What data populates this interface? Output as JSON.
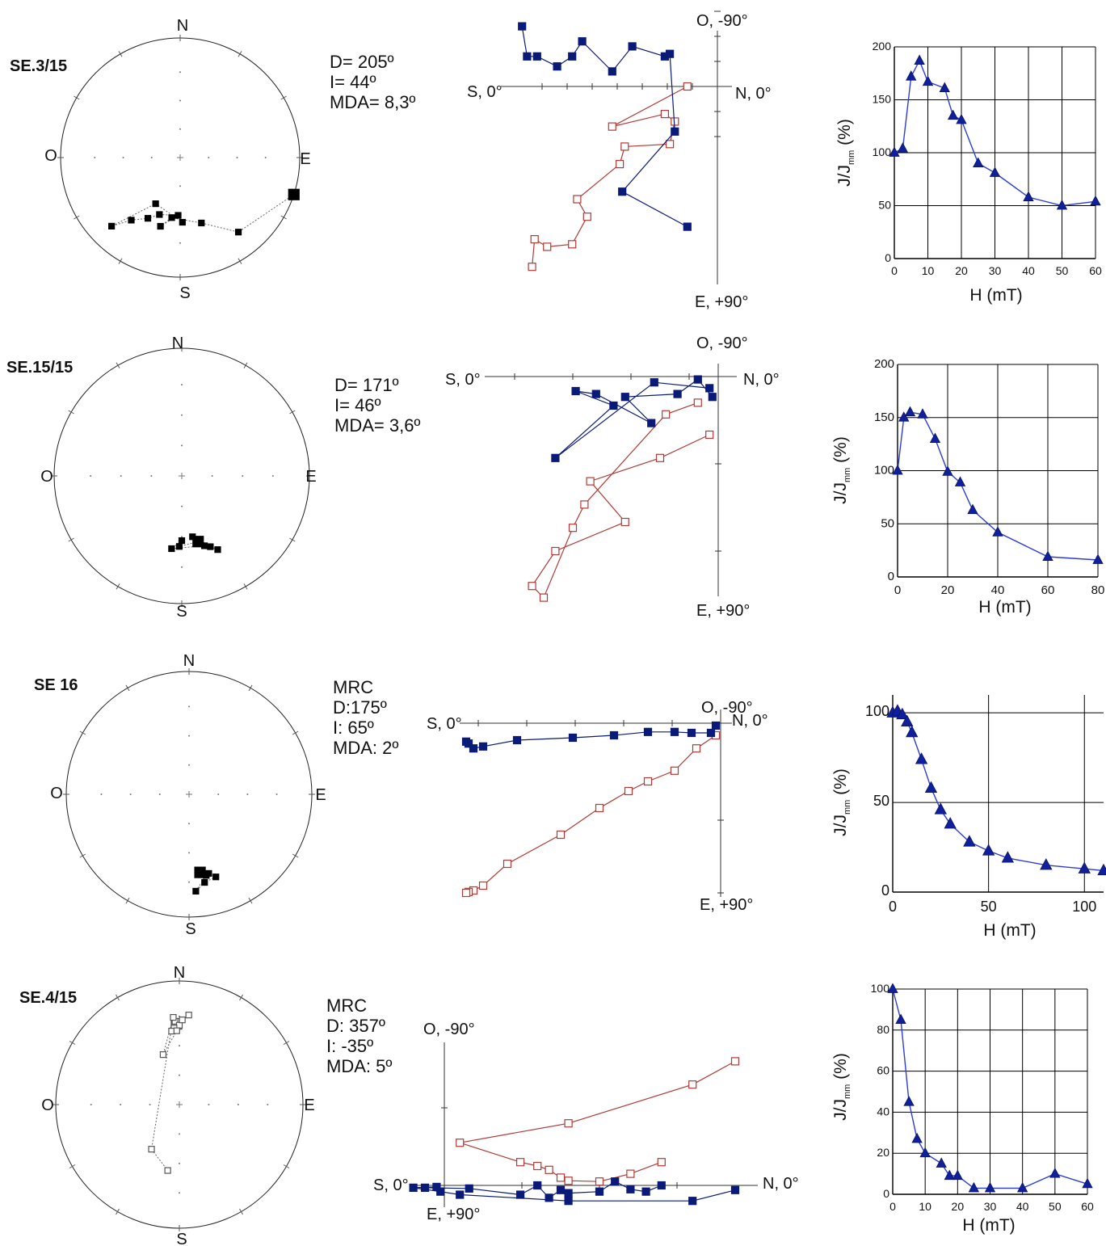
{
  "chart_data": [
    {
      "type": "stereonet",
      "panel": 1,
      "sample": "SE.3/15",
      "compass": {
        "n": "N",
        "s": "S",
        "e": "E",
        "w": "O"
      },
      "stats": [
        "D= 205º",
        "I= 44º",
        "MDA= 8,3º"
      ],
      "points": [
        {
          "dec": 108,
          "inc": 0,
          "big": true
        },
        {
          "dec": 142,
          "inc": 22
        },
        {
          "dec": 162,
          "inc": 42
        },
        {
          "dec": 188,
          "inc": 48
        },
        {
          "dec": 196,
          "inc": 40
        },
        {
          "dec": 182,
          "inc": 50
        },
        {
          "dec": 200,
          "inc": 48
        },
        {
          "dec": 208,
          "inc": 42
        },
        {
          "dec": 218,
          "inc": 34
        },
        {
          "dec": 225,
          "inc": 20
        },
        {
          "dec": 208,
          "inc": 54
        },
        {
          "dec": 178,
          "inc": 45
        }
      ]
    },
    {
      "type": "zijderveld",
      "panel": 1,
      "axes": {
        "top": "O, -90°",
        "bottom": "E, +90°",
        "left": "S, 0°",
        "right": "N, 0°"
      },
      "horizontal": [
        [
          -3.9,
          1.2
        ],
        [
          -3.8,
          0.6
        ],
        [
          -3.6,
          0.6
        ],
        [
          -3.2,
          0.4
        ],
        [
          -2.9,
          0.6
        ],
        [
          -2.7,
          0.9
        ],
        [
          -2.1,
          0.3
        ],
        [
          -1.7,
          0.8
        ],
        [
          -1.05,
          0.6
        ],
        [
          -0.95,
          0.65
        ],
        [
          -0.85,
          -0.9
        ],
        [
          -1.9,
          -2.1
        ],
        [
          -0.6,
          -2.8
        ]
      ],
      "vertical": [
        [
          -0.6,
          0.0
        ],
        [
          -2.1,
          -0.8
        ],
        [
          -1.05,
          -0.55
        ],
        [
          -0.85,
          -0.7
        ],
        [
          -0.95,
          -1.15
        ],
        [
          -1.85,
          -1.2
        ],
        [
          -1.95,
          -1.55
        ],
        [
          -2.8,
          -2.25
        ],
        [
          -2.6,
          -2.6
        ],
        [
          -2.9,
          -3.15
        ],
        [
          -3.4,
          -3.2
        ],
        [
          -3.65,
          -3.05
        ],
        [
          -3.7,
          -3.6
        ]
      ]
    },
    {
      "type": "line",
      "panel": 1,
      "xlabel": "H (mT)",
      "ylabel": "J/J",
      "ylabel_sub": "mm",
      "ylabel_unit": " (%)",
      "xlim": [
        0,
        60
      ],
      "ylim": [
        0,
        200
      ],
      "xticks": [
        0,
        10,
        20,
        30,
        40,
        50,
        60
      ],
      "yticks": [
        0,
        50,
        100,
        150,
        200
      ],
      "grid": true,
      "x": [
        0,
        2.5,
        5,
        7.5,
        10,
        15,
        17.5,
        20,
        25,
        30,
        40,
        50,
        60
      ],
      "y": [
        100,
        104,
        172,
        187,
        167,
        161,
        135,
        131,
        90,
        81,
        58,
        50,
        54
      ]
    },
    {
      "type": "stereonet",
      "panel": 2,
      "sample": "SE.15/15",
      "compass": {
        "n": "N",
        "s": "S",
        "e": "E",
        "w": "O"
      },
      "stats": [
        "D= 171º",
        "I= 46º",
        "MDA= 3,6º"
      ],
      "points": [
        {
          "dec": 166,
          "inc": 46,
          "big": true
        },
        {
          "dec": 182,
          "inc": 44
        },
        {
          "dec": 180,
          "inc": 48
        },
        {
          "dec": 188,
          "inc": 42
        },
        {
          "dec": 162,
          "inc": 42
        },
        {
          "dec": 158,
          "inc": 40
        },
        {
          "dec": 154,
          "inc": 36
        },
        {
          "dec": 170,
          "inc": 50
        }
      ]
    },
    {
      "type": "zijderveld",
      "panel": 2,
      "axes": {
        "top": "O, -90°",
        "bottom": "E, +90°",
        "left": "S, 0°",
        "right": "N, 0°"
      },
      "horizontal": [
        [
          -0.15,
          -0.2
        ],
        [
          -1.1,
          -0.1
        ],
        [
          -2.8,
          -1.4
        ],
        [
          -1.8,
          -0.5
        ],
        [
          -2.45,
          -0.25
        ],
        [
          -2.1,
          -0.3
        ],
        [
          -1.15,
          -0.8
        ],
        [
          -1.6,
          -0.35
        ],
        [
          -0.7,
          -0.3
        ],
        [
          -0.35,
          -0.05
        ],
        [
          -0.1,
          -0.35
        ]
      ],
      "vertical": [
        [
          -0.15,
          -1.0
        ],
        [
          -1.0,
          -1.4
        ],
        [
          -2.2,
          -1.8
        ],
        [
          -1.6,
          -2.5
        ],
        [
          -2.8,
          -3.0
        ],
        [
          -3.2,
          -3.6
        ],
        [
          -3.0,
          -3.8
        ],
        [
          -2.5,
          -2.6
        ],
        [
          -2.3,
          -2.2
        ],
        [
          -0.9,
          -0.65
        ],
        [
          -0.35,
          -0.45
        ]
      ]
    },
    {
      "type": "line",
      "panel": 2,
      "xlabel": "H (mT)",
      "ylabel": "J/J",
      "ylabel_sub": "mm",
      "ylabel_unit": " (%)",
      "xlim": [
        0,
        80
      ],
      "ylim": [
        0,
        200
      ],
      "xticks": [
        0,
        20,
        40,
        60,
        80
      ],
      "yticks": [
        0,
        50,
        100,
        150,
        200
      ],
      "grid": true,
      "x": [
        0,
        2.5,
        5,
        10,
        15,
        20,
        25,
        30,
        40,
        60,
        80
      ],
      "y": [
        100,
        150,
        155,
        153,
        130,
        99,
        89,
        63,
        42,
        19,
        16
      ]
    },
    {
      "type": "stereonet",
      "panel": 3,
      "sample": "SE 16",
      "compass": {
        "n": "N",
        "s": "S",
        "e": "E",
        "w": "O"
      },
      "stats": [
        "MRC",
        "D:175º",
        "I: 65º",
        "MDA: 2º"
      ],
      "points": [
        {
          "dec": 172,
          "inc": 36,
          "big": true
        },
        {
          "dec": 166,
          "inc": 34
        },
        {
          "dec": 162,
          "inc": 30
        },
        {
          "dec": 170,
          "inc": 28
        },
        {
          "dec": 176,
          "inc": 22
        },
        {
          "dec": 168,
          "inc": 33
        }
      ]
    },
    {
      "type": "zijderveld",
      "panel": 3,
      "axes": {
        "top": "O, -90°",
        "bottom": "E, +90°",
        "left": "S, 0°",
        "right": "N, 0°"
      },
      "horizontal": [
        [
          -0.1,
          -0.05
        ],
        [
          -0.2,
          -0.2
        ],
        [
          -0.6,
          -0.2
        ],
        [
          -0.95,
          -0.18
        ],
        [
          -1.5,
          -0.18
        ],
        [
          -2.2,
          -0.25
        ],
        [
          -3.05,
          -0.3
        ],
        [
          -4.2,
          -0.35
        ],
        [
          -4.9,
          -0.48
        ],
        [
          -5.1,
          -0.52
        ],
        [
          -5.2,
          -0.42
        ],
        [
          -5.25,
          -0.38
        ]
      ],
      "vertical": [
        [
          -0.1,
          -0.25
        ],
        [
          -0.5,
          -0.52
        ],
        [
          -0.95,
          -0.98
        ],
        [
          -1.5,
          -1.2
        ],
        [
          -1.9,
          -1.4
        ],
        [
          -2.5,
          -1.75
        ],
        [
          -3.3,
          -2.3
        ],
        [
          -4.4,
          -2.9
        ],
        [
          -4.9,
          -3.35
        ],
        [
          -5.1,
          -3.45
        ],
        [
          -5.2,
          -3.48
        ],
        [
          -5.25,
          -3.5
        ]
      ]
    },
    {
      "type": "line",
      "panel": 3,
      "xlabel": "H (mT)",
      "ylabel": "J/J",
      "ylabel_sub": "mm",
      "ylabel_unit": " (%)",
      "xlim": [
        0,
        110
      ],
      "ylim": [
        0,
        110
      ],
      "xticks": [
        0,
        50,
        100
      ],
      "yticks": [
        0,
        50,
        100
      ],
      "grid": true,
      "x": [
        0,
        2.5,
        5,
        7.5,
        10,
        15,
        20,
        25,
        30,
        40,
        50,
        60,
        80,
        100,
        110
      ],
      "y": [
        100,
        101,
        99,
        95,
        89,
        74,
        58,
        46,
        38,
        28,
        23,
        19,
        15,
        13,
        12
      ]
    },
    {
      "type": "stereonet",
      "panel": 4,
      "sample": "SE.4/15",
      "compass": {
        "n": "N",
        "s": "S",
        "e": "E",
        "w": "O"
      },
      "stats": [
        "MRC",
        "D: 357º",
        "I: -35º",
        "MDA: 5º"
      ],
      "points": [
        {
          "dec": 358,
          "inc": 35,
          "open": true,
          "big": true
        },
        {
          "dec": 357,
          "inc": 33,
          "open": true
        },
        {
          "dec": 0,
          "inc": 36,
          "open": true
        },
        {
          "dec": 6,
          "inc": 28,
          "open": true
        },
        {
          "dec": 356,
          "inc": 38,
          "open": true
        },
        {
          "dec": 2,
          "inc": 32,
          "open": true
        },
        {
          "dec": 354,
          "inc": 40,
          "open": true
        },
        {
          "dec": 358,
          "inc": 40,
          "open": true
        },
        {
          "dec": 342,
          "inc": 55,
          "open": true
        },
        {
          "dec": 356,
          "inc": 30,
          "open": true
        },
        {
          "dec": 212,
          "inc": 55,
          "open": true
        },
        {
          "dec": 190,
          "inc": 45,
          "open": true
        }
      ]
    },
    {
      "type": "zijderveld",
      "panel": 4,
      "axes": {
        "top": "O, -90°",
        "bottom": "E, +90°",
        "left": "S, 0°",
        "right": "N, 0°"
      },
      "horizontal": [
        [
          3.75,
          -0.06
        ],
        [
          3.2,
          -0.2
        ],
        [
          1.6,
          -0.2
        ],
        [
          0.2,
          -0.12
        ],
        [
          -0.05,
          -0.08
        ],
        [
          -0.4,
          -0.03
        ],
        [
          -0.1,
          -0.02
        ],
        [
          -0.25,
          -0.03
        ],
        [
          0.32,
          -0.04
        ],
        [
          0.98,
          -0.12
        ],
        [
          1.2,
          0.0
        ],
        [
          1.35,
          -0.16
        ],
        [
          1.5,
          -0.06
        ],
        [
          1.6,
          -0.1
        ],
        [
          2.0,
          -0.08
        ],
        [
          2.2,
          0.05
        ],
        [
          2.4,
          -0.05
        ],
        [
          2.6,
          -0.08
        ],
        [
          2.8,
          0.0
        ]
      ],
      "vertical": [
        [
          3.75,
          1.6
        ],
        [
          3.2,
          1.3
        ],
        [
          1.6,
          0.8
        ],
        [
          0.2,
          0.55
        ],
        [
          0.98,
          0.3
        ],
        [
          1.2,
          0.25
        ],
        [
          1.35,
          0.2
        ],
        [
          1.5,
          0.1
        ],
        [
          1.6,
          0.06
        ],
        [
          2.0,
          0.05
        ],
        [
          2.4,
          0.15
        ],
        [
          2.8,
          0.3
        ]
      ]
    },
    {
      "type": "line",
      "panel": 4,
      "xlabel": "H (mT)",
      "ylabel": "J/J",
      "ylabel_sub": "mm",
      "ylabel_unit": " (%)",
      "xlim": [
        0,
        60
      ],
      "ylim": [
        0,
        100
      ],
      "xticks": [
        0,
        10,
        20,
        30,
        40,
        50,
        60
      ],
      "yticks": [
        0,
        20,
        40,
        60,
        80,
        100
      ],
      "grid": true,
      "x": [
        0,
        2.5,
        5,
        7.5,
        10,
        15,
        17.5,
        20,
        25,
        30,
        40,
        50,
        60
      ],
      "y": [
        100,
        85,
        45,
        27,
        20,
        15,
        9,
        9,
        3,
        3,
        3,
        10,
        5
      ]
    }
  ],
  "colors": {
    "horizontal_projection": "#0a1a78",
    "vertical_projection": "#b03a36",
    "intensity_line": "#2c3cd8",
    "intensity_marker": "#10209a",
    "grid": "#000000",
    "stereonet_points": "#000000"
  }
}
